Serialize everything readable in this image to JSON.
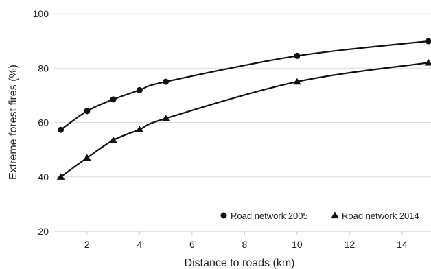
{
  "chart_data": {
    "type": "line",
    "xlabel": "Distance to roads (km)",
    "ylabel": "Extreme forest fires (%)",
    "xlim": [
      0.75,
      15.1
    ],
    "ylim": [
      20,
      100
    ],
    "x_ticks": [
      2,
      4,
      6,
      8,
      10,
      12,
      14
    ],
    "y_ticks": [
      20,
      40,
      60,
      80,
      100
    ],
    "grid": "horizontal",
    "legend_position": "bottom-right",
    "series": [
      {
        "name": "Road network 2005",
        "marker": "circle",
        "color": "#111111",
        "x": [
          1,
          2,
          3,
          4,
          5,
          10,
          15
        ],
        "y": [
          57.3,
          64.2,
          68.5,
          71.9,
          75.0,
          84.5,
          89.9
        ]
      },
      {
        "name": "Road network 2014",
        "marker": "triangle",
        "color": "#111111",
        "x": [
          1,
          2,
          3,
          4,
          5,
          10,
          15
        ],
        "y": [
          40.0,
          47.0,
          53.5,
          57.4,
          61.5,
          75.0,
          82.0
        ]
      }
    ]
  }
}
